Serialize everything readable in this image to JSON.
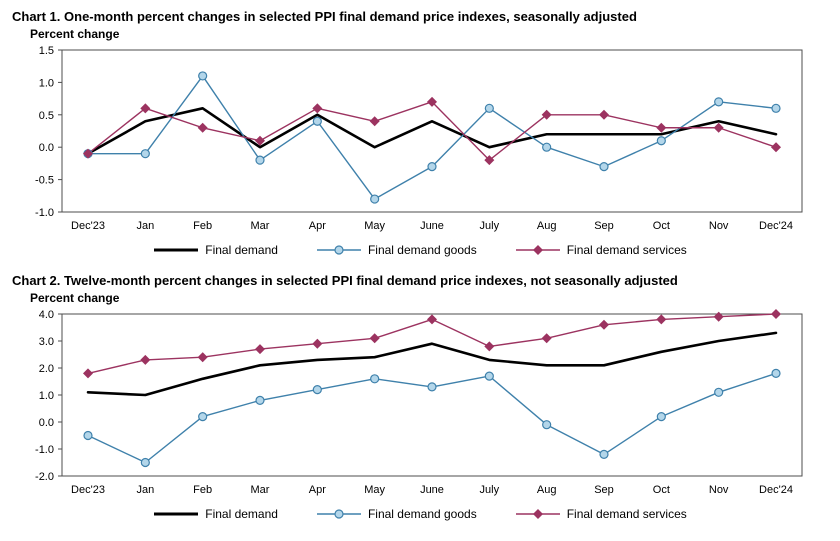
{
  "page": {
    "background": "#ffffff"
  },
  "chart_data": [
    {
      "type": "line",
      "title": "Chart 1. One-month percent changes in selected PPI final demand price indexes, seasonally adjusted",
      "ylabel": "Percent change",
      "xlabel": "",
      "ylim": [
        -1.0,
        1.5
      ],
      "ystep": 0.5,
      "grid": false,
      "legend_position": "bottom",
      "categories": [
        "Dec'23",
        "Jan",
        "Feb",
        "Mar",
        "Apr",
        "May",
        "June",
        "July",
        "Aug",
        "Sep",
        "Oct",
        "Nov",
        "Dec'24"
      ],
      "series": [
        {
          "name": "Final demand",
          "color": "#000000",
          "line_width": 2.6,
          "marker": "none",
          "marker_fill": "#000000",
          "values": [
            -0.1,
            0.4,
            0.6,
            0.0,
            0.5,
            0.0,
            0.4,
            0.0,
            0.2,
            0.2,
            0.2,
            0.4,
            0.2
          ]
        },
        {
          "name": "Final demand goods",
          "color": "#3f81ab",
          "line_width": 1.4,
          "marker": "circle",
          "marker_fill": "#b3d6ea",
          "values": [
            -0.1,
            -0.1,
            1.1,
            -0.2,
            0.4,
            -0.8,
            -0.3,
            0.6,
            0.0,
            -0.3,
            0.1,
            0.7,
            0.6
          ]
        },
        {
          "name": "Final demand services",
          "color": "#9c3360",
          "line_width": 1.4,
          "marker": "diamond",
          "marker_fill": "#9c3360",
          "values": [
            -0.1,
            0.6,
            0.3,
            0.1,
            0.6,
            0.4,
            0.7,
            -0.2,
            0.5,
            0.5,
            0.3,
            0.3,
            0.0
          ]
        }
      ]
    },
    {
      "type": "line",
      "title": "Chart 2. Twelve-month percent changes in selected PPI final demand price indexes, not seasonally adjusted",
      "ylabel": "Percent change",
      "xlabel": "",
      "ylim": [
        -2.0,
        4.0
      ],
      "ystep": 1.0,
      "grid": false,
      "legend_position": "bottom",
      "categories": [
        "Dec'23",
        "Jan",
        "Feb",
        "Mar",
        "Apr",
        "May",
        "June",
        "July",
        "Aug",
        "Sep",
        "Oct",
        "Nov",
        "Dec'24"
      ],
      "series": [
        {
          "name": "Final demand",
          "color": "#000000",
          "line_width": 2.6,
          "marker": "none",
          "marker_fill": "#000000",
          "values": [
            1.1,
            1.0,
            1.6,
            2.1,
            2.3,
            2.4,
            2.9,
            2.3,
            2.1,
            2.1,
            2.6,
            3.0,
            3.3
          ]
        },
        {
          "name": "Final demand goods",
          "color": "#3f81ab",
          "line_width": 1.4,
          "marker": "circle",
          "marker_fill": "#b3d6ea",
          "values": [
            -0.5,
            -1.5,
            0.2,
            0.8,
            1.2,
            1.6,
            1.3,
            1.7,
            -0.1,
            -1.2,
            0.2,
            1.1,
            1.8
          ]
        },
        {
          "name": "Final demand services",
          "color": "#9c3360",
          "line_width": 1.4,
          "marker": "diamond",
          "marker_fill": "#9c3360",
          "values": [
            1.8,
            2.3,
            2.4,
            2.7,
            2.9,
            3.1,
            3.8,
            2.8,
            3.1,
            3.6,
            3.8,
            3.9,
            4.0
          ]
        }
      ]
    }
  ],
  "axis_style": {
    "box_color": "#4d4d4d",
    "tick_font_size": 11
  }
}
